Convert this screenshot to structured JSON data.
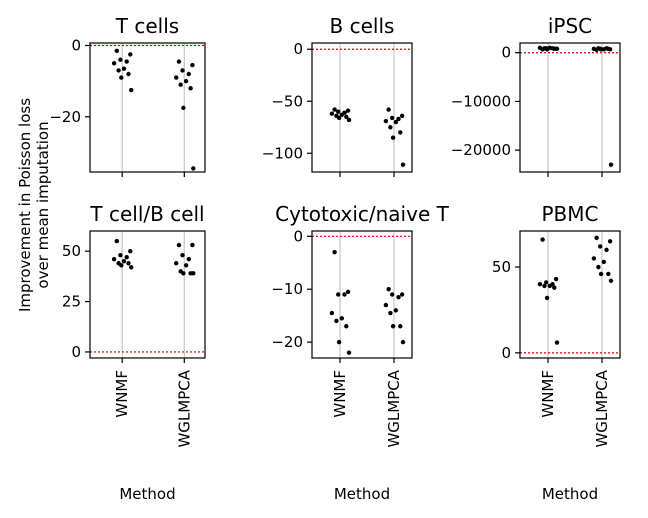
{
  "figure": {
    "ylabel": "Improvement in Poisson loss\nover mean imputation",
    "xlabel": "Method"
  },
  "colors": {
    "points": "#000000",
    "vline": "#c8c8c8",
    "zero_line": "#e00000",
    "frame": "#000000"
  },
  "chart_data": [
    {
      "type": "scatter",
      "title": "T cells",
      "categories": [
        "WNMF",
        "WGLMPCA"
      ],
      "ylim": [
        -35.5,
        0.7
      ],
      "yticks": [
        0,
        -20
      ],
      "ytick_labels": [
        "0",
        "−20"
      ],
      "series": [
        {
          "category": "WNMF",
          "values": [
            -1.5,
            -2.5,
            -4,
            -4.5,
            -5,
            -6.5,
            -7,
            -8,
            -9,
            -12.5
          ]
        },
        {
          "category": "WGLMPCA",
          "values": [
            -4.5,
            -5.5,
            -7,
            -8,
            -9,
            -10,
            -11,
            -12,
            -17.5,
            -34.5
          ]
        }
      ]
    },
    {
      "type": "scatter",
      "title": "B cells",
      "categories": [
        "WNMF",
        "WGLMPCA"
      ],
      "ylim": [
        -118,
        6
      ],
      "yticks": [
        0,
        -50,
        -100
      ],
      "ytick_labels": [
        "0",
        "−50",
        "−100"
      ],
      "series": [
        {
          "category": "WNMF",
          "values": [
            -58,
            -59,
            -60,
            -61,
            -62,
            -63,
            -64,
            -65,
            -66,
            -68
          ]
        },
        {
          "category": "WGLMPCA",
          "values": [
            -58,
            -64,
            -66,
            -67,
            -69,
            -70,
            -75,
            -80,
            -85,
            -111
          ]
        }
      ]
    },
    {
      "type": "scatter",
      "title": "iPSC",
      "categories": [
        "WNMF",
        "WGLMPCA"
      ],
      "ylim": [
        -24500,
        2000
      ],
      "yticks": [
        0,
        -10000,
        -20000
      ],
      "ytick_labels": [
        "0",
        "−10000",
        "−20000"
      ],
      "series": [
        {
          "category": "WNMF",
          "values": [
            700,
            800,
            900,
            900,
            1000,
            1000,
            900,
            800,
            700,
            800
          ]
        },
        {
          "category": "WGLMPCA",
          "values": [
            600,
            700,
            800,
            900,
            800,
            700,
            900,
            800,
            700,
            -23000
          ]
        }
      ]
    },
    {
      "type": "scatter",
      "title": "T cell/B cell",
      "categories": [
        "WNMF",
        "WGLMPCA"
      ],
      "ylim": [
        -3,
        60
      ],
      "yticks": [
        50,
        25,
        0
      ],
      "ytick_labels": [
        "50",
        "25",
        "0"
      ],
      "series": [
        {
          "category": "WNMF",
          "values": [
            55,
            50,
            48,
            47,
            46,
            45,
            44,
            44,
            43,
            42
          ]
        },
        {
          "category": "WGLMPCA",
          "values": [
            53,
            53,
            48,
            46,
            44,
            43,
            40,
            39,
            39,
            39
          ]
        }
      ]
    },
    {
      "type": "scatter",
      "title": "Cytotoxic/naive T",
      "categories": [
        "WNMF",
        "WGLMPCA"
      ],
      "ylim": [
        -23,
        1
      ],
      "yticks": [
        0,
        -10,
        -20
      ],
      "ytick_labels": [
        "0",
        "−10",
        "−20"
      ],
      "series": [
        {
          "category": "WNMF",
          "values": [
            -3,
            -10.5,
            -11,
            -11,
            -14.5,
            -15.5,
            -16,
            -17,
            -20,
            -22
          ]
        },
        {
          "category": "WGLMPCA",
          "values": [
            -10,
            -11,
            -11,
            -11.5,
            -13,
            -14,
            -14.5,
            -17,
            -17,
            -20
          ]
        }
      ]
    },
    {
      "type": "scatter",
      "title": "PBMC",
      "categories": [
        "WNMF",
        "WGLMPCA"
      ],
      "ylim": [
        -3,
        71
      ],
      "yticks": [
        50,
        0
      ],
      "ytick_labels": [
        "50",
        "0"
      ],
      "series": [
        {
          "category": "WNMF",
          "values": [
            66,
            43,
            41,
            40,
            40,
            39,
            39,
            38,
            32,
            6
          ]
        },
        {
          "category": "WGLMPCA",
          "values": [
            67,
            65,
            62,
            60,
            55,
            53,
            50,
            46,
            46,
            42
          ]
        }
      ]
    }
  ]
}
